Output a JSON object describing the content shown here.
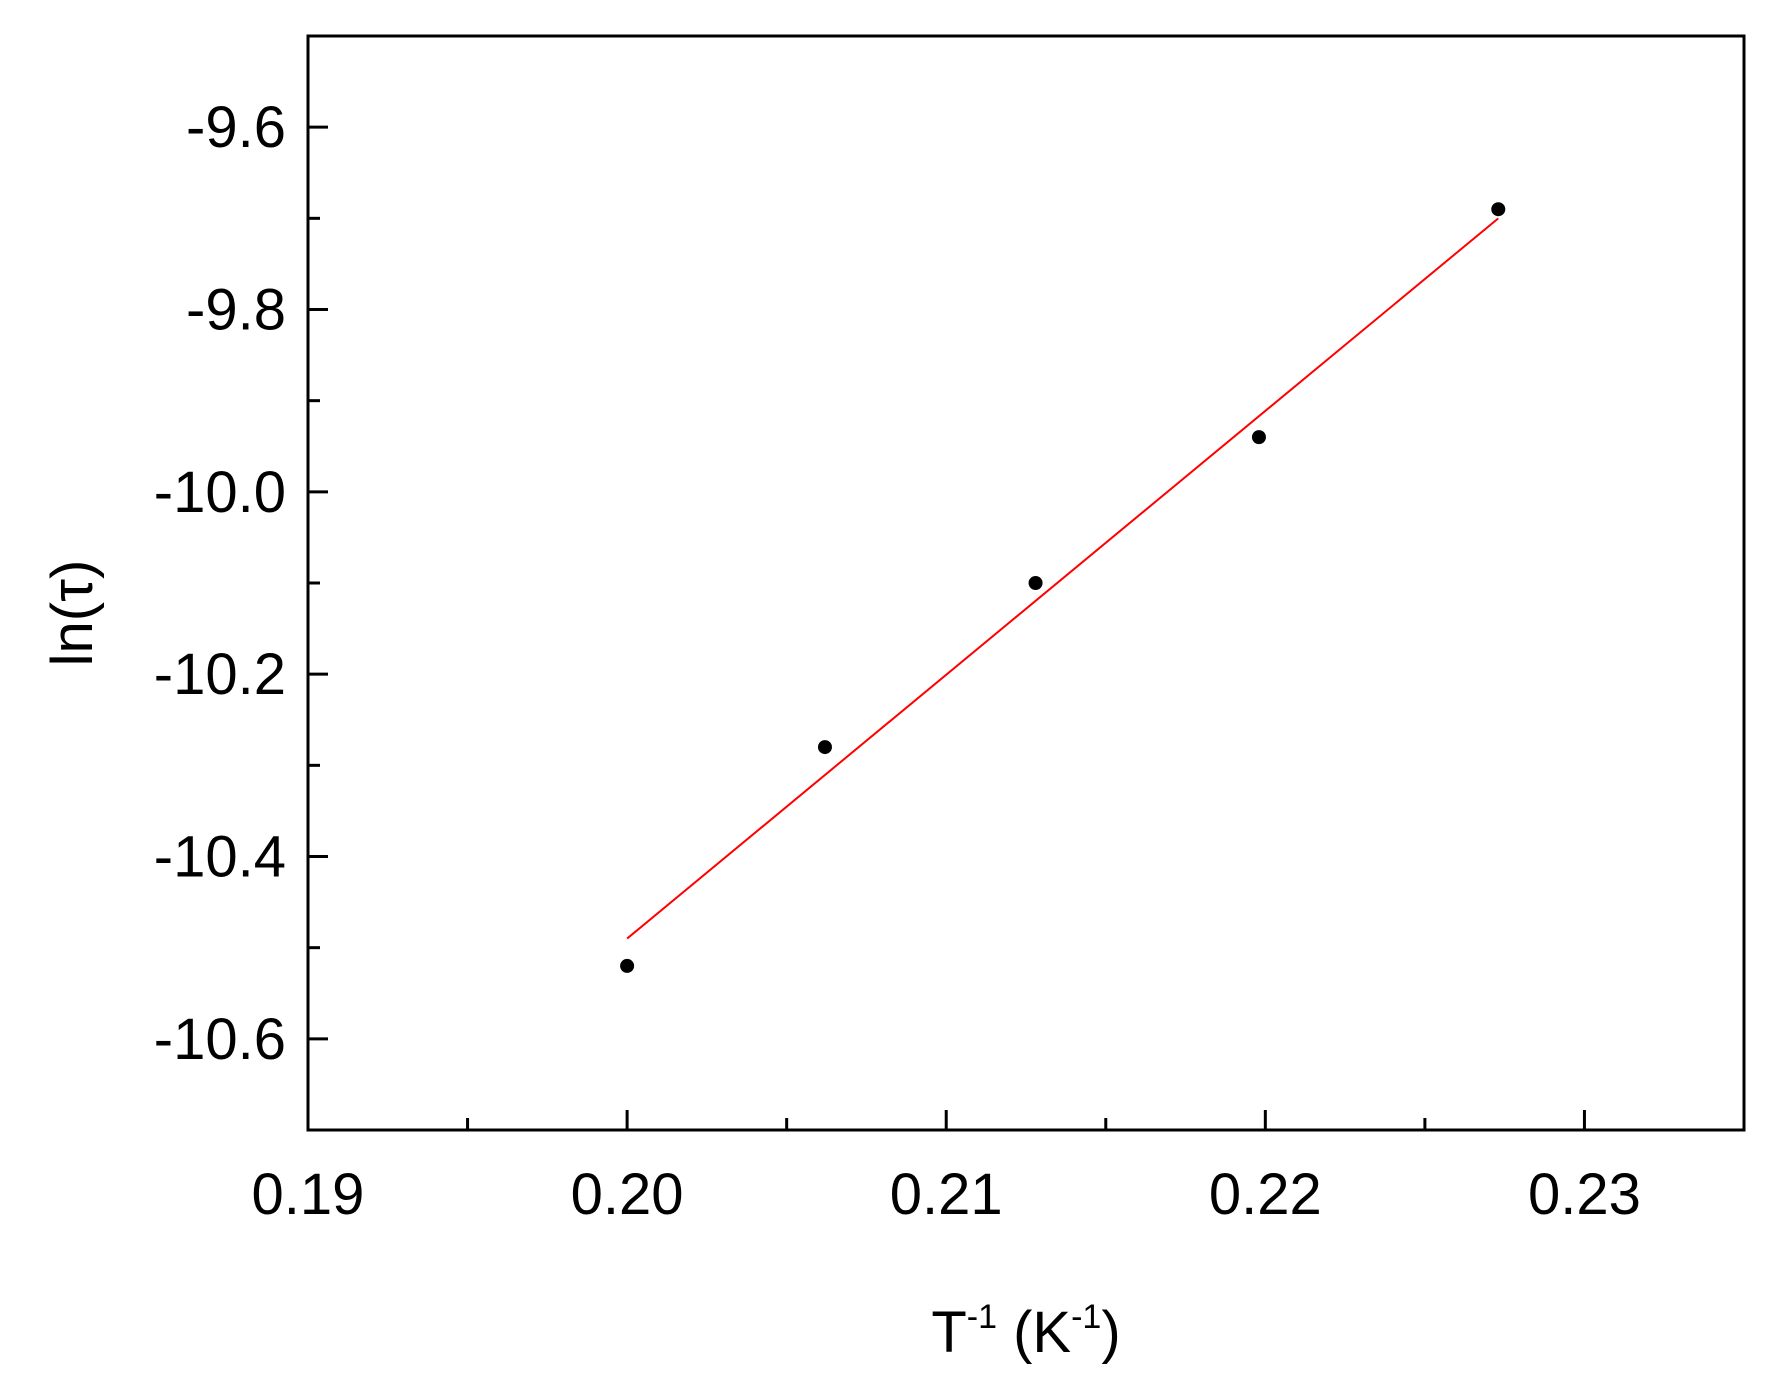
{
  "chart_data": {
    "type": "scatter",
    "title": "",
    "xlabel_parts": {
      "t_base": "T",
      "t_sup": "-1",
      "k_open": " (K",
      "k_sup": "-1",
      "k_close": ")"
    },
    "ylabel": "ln(τ)",
    "xlim": [
      0.19,
      0.235
    ],
    "ylim": [
      -10.7,
      -9.5
    ],
    "x_ticks": [
      0.19,
      0.2,
      0.21,
      0.22,
      0.23
    ],
    "x_tick_labels": [
      "0.19",
      "0.20",
      "0.21",
      "0.22",
      "0.23"
    ],
    "x_minor_ticks": [
      0.195,
      0.205,
      0.215,
      0.225
    ],
    "y_ticks": [
      -9.6,
      -9.8,
      -10.0,
      -10.2,
      -10.4,
      -10.6
    ],
    "y_tick_labels": [
      "-9.6",
      "-9.8",
      "-10.0",
      "-10.2",
      "-10.4",
      "-10.6"
    ],
    "y_minor_ticks": [
      -9.7,
      -9.9,
      -10.1,
      -10.3,
      -10.5
    ],
    "grid": false,
    "legend": "none",
    "series": [
      {
        "kind": "points",
        "color": "#000000",
        "points": [
          {
            "x": 0.2,
            "y": -10.52
          },
          {
            "x": 0.2062,
            "y": -10.28
          },
          {
            "x": 0.2128,
            "y": -10.1
          },
          {
            "x": 0.2198,
            "y": -9.94
          },
          {
            "x": 0.2273,
            "y": -9.69
          }
        ]
      },
      {
        "kind": "fit-line",
        "color": "#ff0000",
        "points": [
          {
            "x": 0.2,
            "y": -10.49
          },
          {
            "x": 0.2273,
            "y": -9.7
          }
        ]
      }
    ]
  }
}
